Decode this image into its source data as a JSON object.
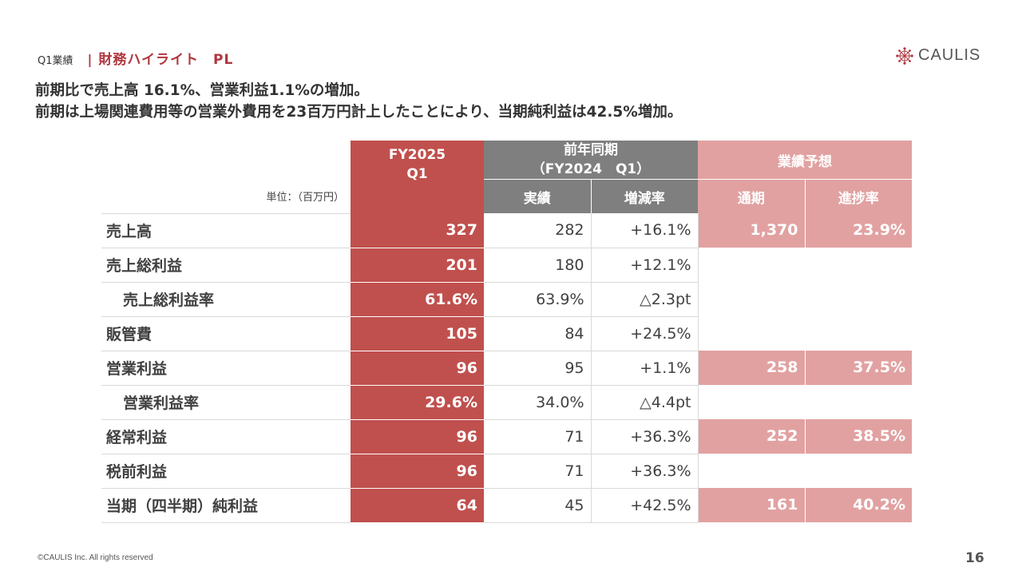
{
  "header": {
    "section": "Q1業績",
    "divider": "|",
    "title": "財務ハイライト　PL"
  },
  "logo": {
    "text": "CAULIS",
    "icon": "caulis-network-icon",
    "color": "#b0363e"
  },
  "lead": {
    "line1": "前期比で売上高 16.1%、営業利益1.1%の増加。",
    "line2": "前期は上場関連費用等の営業外費用を23百万円計上したことにより、当期純利益は42.5%増加。"
  },
  "table": {
    "unit": "単位：（百万円）",
    "columns": {
      "current_line1": "FY2025",
      "current_line2": "Q1",
      "prev_line1": "前年同期",
      "prev_line2": "（FY2024　Q1）",
      "prev_actual": "実績",
      "prev_change": "増減率",
      "forecast": "業績予想",
      "forecast_full": "通期",
      "forecast_progress": "進捗率"
    },
    "rows": [
      {
        "label": "売上高",
        "current": "327",
        "prev": "282",
        "change": "+16.1%",
        "forecast_full": "1,370",
        "progress": "23.9%"
      },
      {
        "label": "売上総利益",
        "current": "201",
        "prev": "180",
        "change": "+12.1%",
        "forecast_full": "",
        "progress": ""
      },
      {
        "label": "売上総利益率",
        "current": "61.6%",
        "prev": "63.9%",
        "change": "△2.3pt",
        "forecast_full": "",
        "progress": ""
      },
      {
        "label": "販管費",
        "current": "105",
        "prev": "84",
        "change": "+24.5%",
        "forecast_full": "",
        "progress": ""
      },
      {
        "label": "営業利益",
        "current": "96",
        "prev": "95",
        "change": "+1.1%",
        "forecast_full": "258",
        "progress": "37.5%"
      },
      {
        "label": "営業利益率",
        "current": "29.6%",
        "prev": "34.0%",
        "change": "△4.4pt",
        "forecast_full": "",
        "progress": ""
      },
      {
        "label": "経常利益",
        "current": "96",
        "prev": "71",
        "change": "+36.3%",
        "forecast_full": "252",
        "progress": "38.5%"
      },
      {
        "label": "税前利益",
        "current": "96",
        "prev": "71",
        "change": "+36.3%",
        "forecast_full": "",
        "progress": ""
      },
      {
        "label": "当期（四半期）純利益",
        "current": "64",
        "prev": "45",
        "change": "+42.5%",
        "forecast_full": "161",
        "progress": "40.2%"
      }
    ]
  },
  "colors": {
    "current": "#c0504d",
    "previous_header": "#7f7f7f",
    "forecast": "#e2a1a1",
    "accent": "#b0363e"
  },
  "footer": {
    "copyright": "©CAULIS Inc. All rights reserved",
    "page": "16"
  }
}
